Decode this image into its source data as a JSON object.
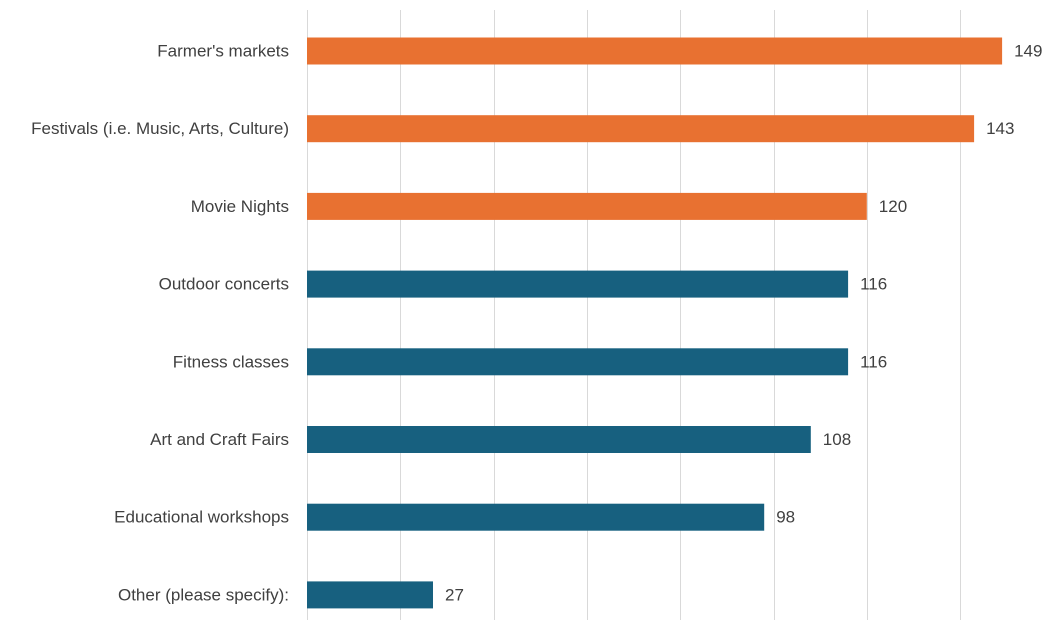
{
  "chart_data": {
    "type": "bar",
    "orientation": "horizontal",
    "categories": [
      "Farmer's markets",
      "Festivals (i.e. Music, Arts, Culture)",
      "Movie Nights",
      "Outdoor concerts",
      "Fitness classes",
      "Art and Craft Fairs",
      "Educational workshops",
      "Other (please specify):"
    ],
    "values": [
      149,
      143,
      120,
      116,
      116,
      108,
      98,
      27
    ],
    "data_labels": [
      "149",
      "143",
      "120",
      "116",
      "116",
      "108",
      "98",
      "27"
    ],
    "highlighted_count": 3,
    "xlim": [
      0,
      160
    ],
    "grid_step": 20,
    "grid": true,
    "legend": "none",
    "colors": {
      "highlight": "#e87131",
      "default": "#17607f",
      "grid": "#d9d9d9",
      "text": "#404040"
    }
  }
}
